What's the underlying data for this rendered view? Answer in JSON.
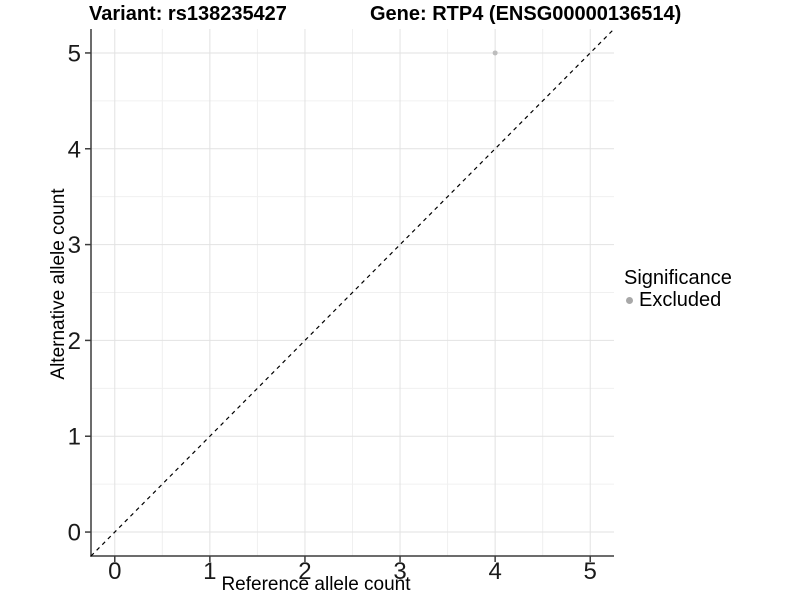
{
  "chart_data": {
    "type": "scatter",
    "title_left": "Variant: rs138235427",
    "title_right": "Gene: RTP4 (ENSG00000136514)",
    "xlabel": "Reference allele count",
    "ylabel": "Alternative allele count",
    "xlim": [
      -0.25,
      5.25
    ],
    "ylim": [
      -0.25,
      5.25
    ],
    "x_ticks": [
      0,
      1,
      2,
      3,
      4,
      5
    ],
    "y_ticks": [
      0,
      1,
      2,
      3,
      4,
      5
    ],
    "x_minor": [
      0.5,
      1.5,
      2.5,
      3.5,
      4.5
    ],
    "y_minor": [
      0.5,
      1.5,
      2.5,
      3.5,
      4.5
    ],
    "grid": true,
    "points": [
      {
        "x": 4,
        "y": 5,
        "series": "Excluded"
      }
    ],
    "reference_line": {
      "style": "dashed",
      "slope": 1,
      "intercept": 0,
      "from": [
        -0.25,
        -0.25
      ],
      "to": [
        5.25,
        5.25
      ]
    },
    "legend": {
      "title": "Significance",
      "position": "right",
      "items": [
        {
          "label": "Excluded",
          "color": "#a8a8a8"
        }
      ]
    },
    "colors": {
      "point": "#bdbdbd",
      "grid_major": "#e2e2e2",
      "grid_minor": "#f0f0f0",
      "axis_line": "#3c3c3c",
      "tick_text": "#1a1a1a",
      "reference_line": "#000000",
      "background": "#ffffff"
    }
  }
}
